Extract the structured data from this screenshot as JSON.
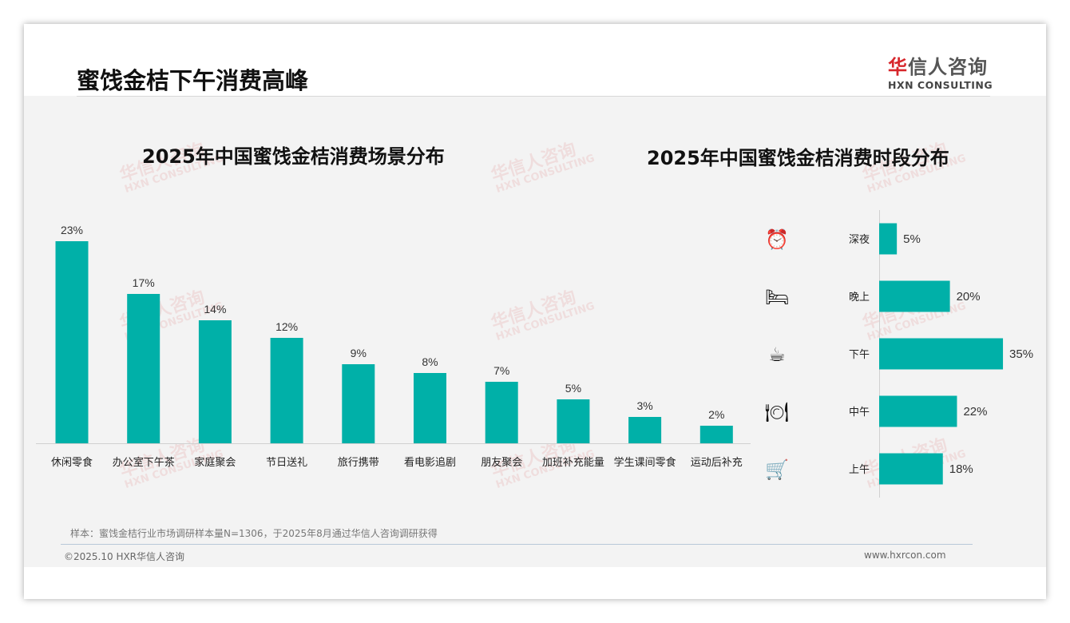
{
  "header": {
    "title": "蜜饯金桔下午消费高峰",
    "logo_cn": "华信人咨询",
    "logo_en": "HXN CONSULTING"
  },
  "watermark": {
    "cn": "华信人咨询",
    "en": "HXN CONSULTING"
  },
  "footer": {
    "note": "样本：蜜饯金桔行业市场调研样本量N=1306，于2025年8月通过华信人咨询调研获得",
    "copyright": "©2025.10 HXR华信人咨询",
    "website": "www.hxrcon.com"
  },
  "colors": {
    "bar": "#00b0a8"
  },
  "chart_data": [
    {
      "type": "bar",
      "title": "2025年中国蜜饯金桔消费场景分布",
      "categories": [
        "休闲零食",
        "办公室下午茶",
        "家庭聚会",
        "节日送礼",
        "旅行携带",
        "看电影追剧",
        "朋友聚会",
        "加班补充能量",
        "学生课间零食",
        "运动后补充"
      ],
      "values": [
        23,
        17,
        14,
        12,
        9,
        8,
        7,
        5,
        3,
        2
      ],
      "labels": [
        "23%",
        "17%",
        "14%",
        "12%",
        "9%",
        "8%",
        "7%",
        "5%",
        "3%",
        "2%"
      ],
      "xlabel": "",
      "ylabel": "",
      "unit": "%"
    },
    {
      "type": "bar",
      "orientation": "horizontal",
      "title": "2025年中国蜜饯金桔消费时段分布",
      "categories": [
        "深夜",
        "晚上",
        "下午",
        "中午",
        "上午"
      ],
      "icons": [
        "alarm-clock-icon",
        "bed-icon",
        "coffee-cup-icon",
        "plate-cutlery-icon",
        "shopping-cart-icon"
      ],
      "values": [
        5,
        20,
        35,
        22,
        18
      ],
      "labels": [
        "5%",
        "20%",
        "35%",
        "22%",
        "18%"
      ],
      "unit": "%"
    }
  ]
}
